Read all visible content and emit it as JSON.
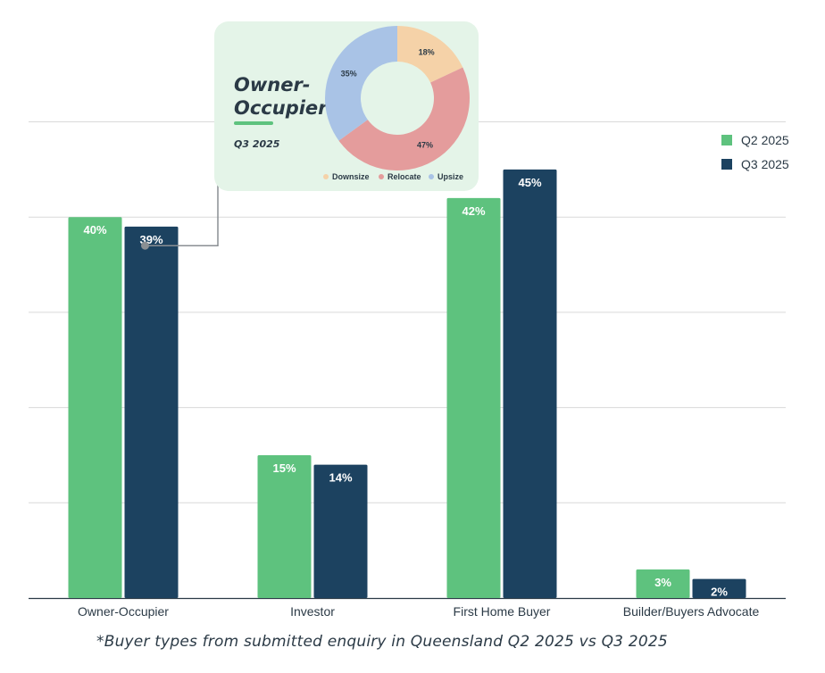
{
  "colors": {
    "q2": "#5ec27e",
    "q3": "#1c4260",
    "grid": "#d9d9d9",
    "axis": "#2b3a46"
  },
  "chart_data": [
    {
      "type": "bar",
      "categories": [
        "Owner-Occupier",
        "Investor",
        "First Home Buyer",
        "Builder/Buyers Advocate"
      ],
      "series": [
        {
          "name": "Q2 2025",
          "values": [
            40,
            15,
            42,
            3
          ],
          "labels": [
            "40%",
            "15%",
            "42%",
            "3%"
          ]
        },
        {
          "name": "Q3 2025",
          "values": [
            39,
            14,
            45,
            2
          ],
          "labels": [
            "39%",
            "14%",
            "45%",
            "2%"
          ]
        }
      ],
      "ylim": [
        0,
        50
      ],
      "grid": true,
      "legend": "top-right",
      "xlabel": "",
      "ylabel": "",
      "footnote": "*Buyer types from submitted enquiry in Queensland Q2 2025 vs Q3 2025"
    },
    {
      "type": "pie",
      "title": "Owner-Occupier",
      "subtitle": "Q3 2025",
      "linked_category": "Owner-Occupier",
      "linked_series": "Q3 2025",
      "slices": [
        {
          "name": "Downsize",
          "value": 18,
          "label": "18%",
          "color": "#f5d2a8"
        },
        {
          "name": "Relocate",
          "value": 47,
          "label": "47%",
          "color": "#e49c9c"
        },
        {
          "name": "Upsize",
          "value": 35,
          "label": "35%",
          "color": "#a9c3e6"
        }
      ]
    }
  ]
}
